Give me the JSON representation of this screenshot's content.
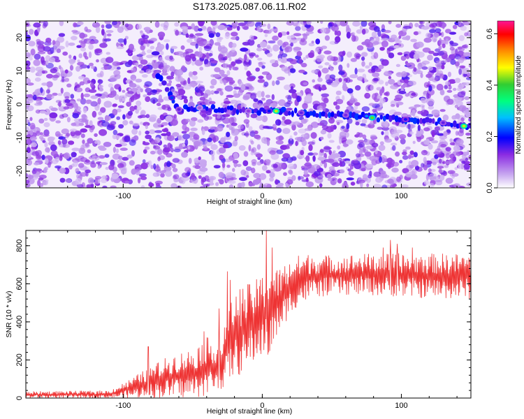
{
  "title": "S173.2025.087.06.11.R02",
  "chart_data": [
    {
      "type": "heatmap",
      "xlabel": "Height of straight line (km)",
      "ylabel": "Frequency (Hz)",
      "xlim": [
        -170,
        150
      ],
      "ylim": [
        -25,
        25
      ],
      "x_ticks": [
        "-100",
        "0",
        "100"
      ],
      "y_ticks": [
        "20",
        "10",
        "0",
        "-10",
        "-20"
      ],
      "colorbar": {
        "label": "Normalized spectral amplitude",
        "range": [
          0.0,
          0.65
        ],
        "ticks": [
          "0.0",
          "0.2",
          "0.4",
          "0.6"
        ]
      },
      "signal_track": [
        {
          "x": -65,
          "y": 2.0,
          "amp": 0.22
        },
        {
          "x": -60,
          "y": -1.5,
          "amp": 0.15
        },
        {
          "x": -45,
          "y": -1.0,
          "amp": 0.1
        },
        {
          "x": -10,
          "y": -2.0,
          "amp": 0.12
        },
        {
          "x": 5,
          "y": -2.0,
          "amp": 0.2
        },
        {
          "x": 10,
          "y": -2.0,
          "amp": 0.45
        },
        {
          "x": 28,
          "y": -2.5,
          "amp": 0.15
        },
        {
          "x": 60,
          "y": -3.2,
          "amp": 0.14
        },
        {
          "x": 75,
          "y": -3.5,
          "amp": 0.25
        },
        {
          "x": 79,
          "y": -4.0,
          "amp": 0.42
        },
        {
          "x": 103,
          "y": -4.5,
          "amp": 0.18
        },
        {
          "x": 130,
          "y": -5.5,
          "amp": 0.15
        },
        {
          "x": 145,
          "y": -6.5,
          "amp": 0.45
        }
      ]
    },
    {
      "type": "line",
      "xlabel": "Height of straight line (km)",
      "ylabel": "SNR (10 * v/v)",
      "xlim": [
        -170,
        150
      ],
      "ylim": [
        0,
        880
      ],
      "x_ticks": [
        "-100",
        "0",
        "100"
      ],
      "y_ticks": [
        "0",
        "200",
        "400",
        "600",
        "800"
      ],
      "series": [
        {
          "color": "#ee3333",
          "envelope": [
            {
              "x": -170,
              "low": 0,
              "high": 35
            },
            {
              "x": -110,
              "low": 0,
              "high": 40
            },
            {
              "x": -95,
              "low": 0,
              "high": 100
            },
            {
              "x": -80,
              "low": 0,
              "high": 170
            },
            {
              "x": -65,
              "low": 0,
              "high": 230
            },
            {
              "x": -50,
              "low": 0,
              "high": 260
            },
            {
              "x": -40,
              "low": 10,
              "high": 320
            },
            {
              "x": -30,
              "low": 40,
              "high": 300
            },
            {
              "x": -25,
              "low": 80,
              "high": 440
            },
            {
              "x": -20,
              "low": 110,
              "high": 560
            },
            {
              "x": -15,
              "low": 120,
              "high": 590
            },
            {
              "x": -10,
              "low": 150,
              "high": 600
            },
            {
              "x": -5,
              "low": 190,
              "high": 620
            },
            {
              "x": 0,
              "low": 220,
              "high": 650
            },
            {
              "x": 5,
              "low": 200,
              "high": 700
            },
            {
              "x": 10,
              "low": 300,
              "high": 680
            },
            {
              "x": 15,
              "low": 380,
              "high": 700
            },
            {
              "x": 20,
              "low": 430,
              "high": 730
            },
            {
              "x": 25,
              "low": 480,
              "high": 750
            },
            {
              "x": 35,
              "low": 520,
              "high": 760
            },
            {
              "x": 50,
              "low": 540,
              "high": 750
            },
            {
              "x": 75,
              "low": 540,
              "high": 760
            },
            {
              "x": 100,
              "low": 530,
              "high": 760
            },
            {
              "x": 125,
              "low": 520,
              "high": 760
            },
            {
              "x": 150,
              "low": 520,
              "high": 760
            }
          ],
          "spikes": [
            {
              "x": -82,
              "y": 270
            },
            {
              "x": -42,
              "y": 350
            },
            {
              "x": -31,
              "y": 470
            },
            {
              "x": -25,
              "y": 665
            },
            {
              "x": -23,
              "y": 620
            },
            {
              "x": 3,
              "y": 880
            },
            {
              "x": 7,
              "y": 790
            },
            {
              "x": 92,
              "y": 830
            },
            {
              "x": 97,
              "y": 810
            },
            {
              "x": 87,
              "y": 790
            },
            {
              "x": 108,
              "y": 790
            }
          ]
        }
      ]
    }
  ]
}
